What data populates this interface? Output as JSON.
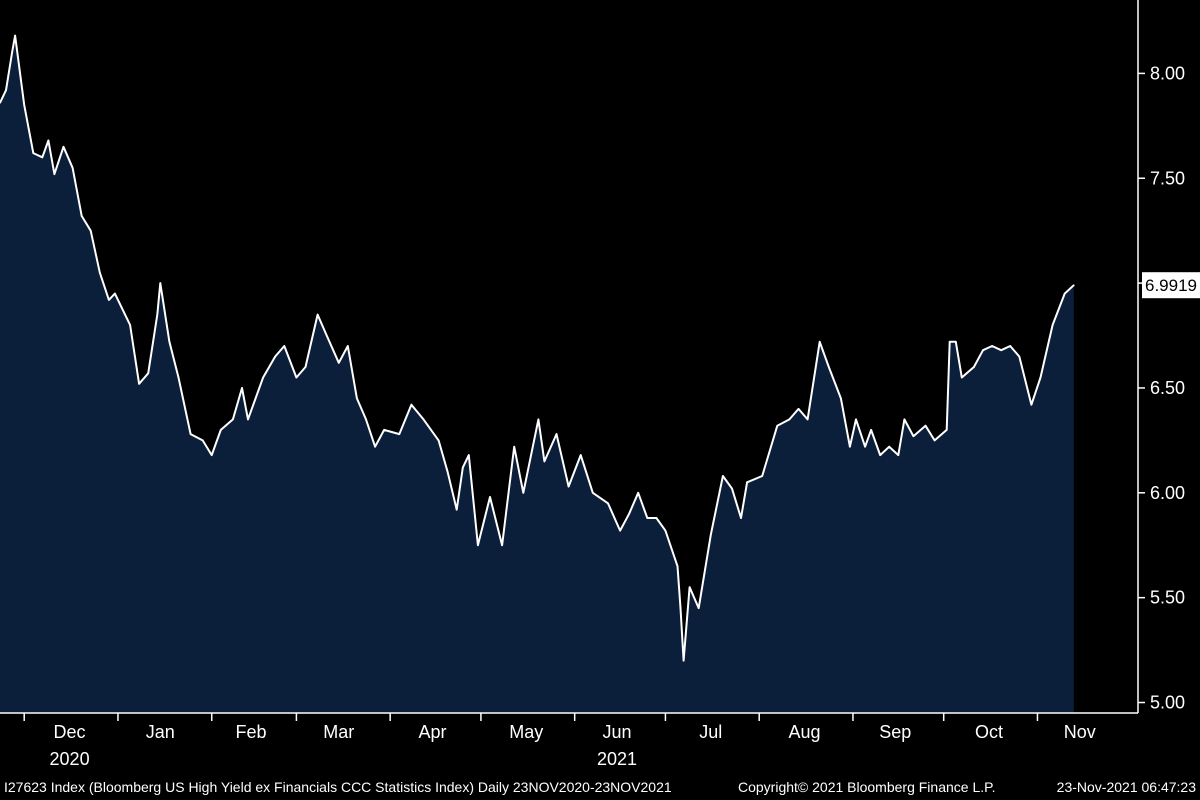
{
  "chart_data": {
    "type": "area",
    "series": [
      {
        "points": [
          [
            "2020-11-23",
            7.86
          ],
          [
            "2020-11-25",
            7.92
          ],
          [
            "2020-11-27",
            8.1
          ],
          [
            "2020-11-28",
            8.18
          ],
          [
            "2020-12-01",
            7.85
          ],
          [
            "2020-12-04",
            7.62
          ],
          [
            "2020-12-07",
            7.6
          ],
          [
            "2020-12-09",
            7.68
          ],
          [
            "2020-12-11",
            7.52
          ],
          [
            "2020-12-14",
            7.65
          ],
          [
            "2020-12-17",
            7.55
          ],
          [
            "2020-12-20",
            7.32
          ],
          [
            "2020-12-23",
            7.25
          ],
          [
            "2020-12-26",
            7.05
          ],
          [
            "2020-12-29",
            6.92
          ],
          [
            "2020-12-31",
            6.95
          ],
          [
            "2021-01-05",
            6.8
          ],
          [
            "2021-01-08",
            6.52
          ],
          [
            "2021-01-11",
            6.57
          ],
          [
            "2021-01-14",
            6.85
          ],
          [
            "2021-01-15",
            7.0
          ],
          [
            "2021-01-18",
            6.72
          ],
          [
            "2021-01-21",
            6.55
          ],
          [
            "2021-01-25",
            6.28
          ],
          [
            "2021-01-29",
            6.25
          ],
          [
            "2021-02-01",
            6.18
          ],
          [
            "2021-02-04",
            6.3
          ],
          [
            "2021-02-08",
            6.35
          ],
          [
            "2021-02-11",
            6.5
          ],
          [
            "2021-02-13",
            6.35
          ],
          [
            "2021-02-18",
            6.55
          ],
          [
            "2021-02-22",
            6.65
          ],
          [
            "2021-02-25",
            6.7
          ],
          [
            "2021-03-01",
            6.55
          ],
          [
            "2021-03-04",
            6.6
          ],
          [
            "2021-03-08",
            6.85
          ],
          [
            "2021-03-11",
            6.75
          ],
          [
            "2021-03-15",
            6.62
          ],
          [
            "2021-03-18",
            6.7
          ],
          [
            "2021-03-21",
            6.45
          ],
          [
            "2021-03-24",
            6.35
          ],
          [
            "2021-03-27",
            6.22
          ],
          [
            "2021-03-30",
            6.3
          ],
          [
            "2021-04-04",
            6.28
          ],
          [
            "2021-04-08",
            6.42
          ],
          [
            "2021-04-12",
            6.35
          ],
          [
            "2021-04-17",
            6.25
          ],
          [
            "2021-04-20",
            6.1
          ],
          [
            "2021-04-23",
            5.92
          ],
          [
            "2021-04-25",
            6.12
          ],
          [
            "2021-04-27",
            6.18
          ],
          [
            "2021-04-30",
            5.75
          ],
          [
            "2021-05-04",
            5.98
          ],
          [
            "2021-05-08",
            5.75
          ],
          [
            "2021-05-12",
            6.22
          ],
          [
            "2021-05-15",
            6.0
          ],
          [
            "2021-05-20",
            6.35
          ],
          [
            "2021-05-22",
            6.15
          ],
          [
            "2021-05-26",
            6.28
          ],
          [
            "2021-05-30",
            6.03
          ],
          [
            "2021-06-03",
            6.18
          ],
          [
            "2021-06-07",
            6.0
          ],
          [
            "2021-06-12",
            5.95
          ],
          [
            "2021-06-16",
            5.82
          ],
          [
            "2021-06-19",
            5.9
          ],
          [
            "2021-06-22",
            6.0
          ],
          [
            "2021-06-25",
            5.88
          ],
          [
            "2021-06-28",
            5.88
          ],
          [
            "2021-07-01",
            5.82
          ],
          [
            "2021-07-05",
            5.65
          ],
          [
            "2021-07-06",
            5.45
          ],
          [
            "2021-07-07",
            5.2
          ],
          [
            "2021-07-09",
            5.55
          ],
          [
            "2021-07-12",
            5.45
          ],
          [
            "2021-07-16",
            5.8
          ],
          [
            "2021-07-20",
            6.08
          ],
          [
            "2021-07-23",
            6.02
          ],
          [
            "2021-07-26",
            5.88
          ],
          [
            "2021-07-28",
            6.05
          ],
          [
            "2021-08-02",
            6.08
          ],
          [
            "2021-08-07",
            6.32
          ],
          [
            "2021-08-11",
            6.35
          ],
          [
            "2021-08-14",
            6.4
          ],
          [
            "2021-08-17",
            6.35
          ],
          [
            "2021-08-21",
            6.72
          ],
          [
            "2021-08-24",
            6.6
          ],
          [
            "2021-08-28",
            6.45
          ],
          [
            "2021-08-31",
            6.22
          ],
          [
            "2021-09-02",
            6.35
          ],
          [
            "2021-09-05",
            6.22
          ],
          [
            "2021-09-07",
            6.3
          ],
          [
            "2021-09-10",
            6.18
          ],
          [
            "2021-09-13",
            6.22
          ],
          [
            "2021-09-16",
            6.18
          ],
          [
            "2021-09-18",
            6.35
          ],
          [
            "2021-09-21",
            6.27
          ],
          [
            "2021-09-25",
            6.32
          ],
          [
            "2021-09-28",
            6.25
          ],
          [
            "2021-10-02",
            6.3
          ],
          [
            "2021-10-03",
            6.72
          ],
          [
            "2021-10-05",
            6.72
          ],
          [
            "2021-10-07",
            6.55
          ],
          [
            "2021-10-11",
            6.6
          ],
          [
            "2021-10-14",
            6.68
          ],
          [
            "2021-10-17",
            6.7
          ],
          [
            "2021-10-20",
            6.68
          ],
          [
            "2021-10-23",
            6.7
          ],
          [
            "2021-10-26",
            6.65
          ],
          [
            "2021-10-30",
            6.42
          ],
          [
            "2021-11-02",
            6.55
          ],
          [
            "2021-11-06",
            6.8
          ],
          [
            "2021-11-10",
            6.95
          ],
          [
            "2021-11-13",
            6.99
          ]
        ]
      }
    ],
    "x_range": [
      "2020-11-23",
      "2021-11-23"
    ],
    "ylim": [
      4.95,
      8.35
    ],
    "y_ticks": [
      "5.00",
      "5.50",
      "6.00",
      "6.50",
      "7.00",
      "7.50",
      "8.00"
    ],
    "x_month_labels": [
      {
        "date": "2020-12-16",
        "label": "Dec"
      },
      {
        "date": "2021-01-15",
        "label": "Jan"
      },
      {
        "date": "2021-02-14",
        "label": "Feb"
      },
      {
        "date": "2021-03-15",
        "label": "Mar"
      },
      {
        "date": "2021-04-15",
        "label": "Apr"
      },
      {
        "date": "2021-05-16",
        "label": "May"
      },
      {
        "date": "2021-06-15",
        "label": "Jun"
      },
      {
        "date": "2021-07-16",
        "label": "Jul"
      },
      {
        "date": "2021-08-16",
        "label": "Aug"
      },
      {
        "date": "2021-09-15",
        "label": "Sep"
      },
      {
        "date": "2021-10-16",
        "label": "Oct"
      },
      {
        "date": "2021-11-15",
        "label": "Nov"
      }
    ],
    "x_year_labels": [
      {
        "date": "2020-12-16",
        "label": "2020"
      },
      {
        "date": "2021-06-15",
        "label": "2021"
      }
    ],
    "x_ticks": [
      "2020-12-01",
      "2021-01-01",
      "2021-02-01",
      "2021-03-01",
      "2021-04-01",
      "2021-05-01",
      "2021-06-01",
      "2021-07-01",
      "2021-08-01",
      "2021-09-01",
      "2021-10-01",
      "2021-11-01"
    ],
    "last_value_label": "6.9919",
    "grid": false,
    "legend": "none",
    "colors": {
      "background": "#000000",
      "area_fill": "#0b1e3a",
      "line": "#ffffff",
      "axis": "#ffffff"
    }
  },
  "footer": {
    "index_description": "I27623 Index (Bloomberg US High Yield ex Financials CCC Statistics Index)  Daily 23NOV2020-23NOV2021",
    "copyright": "Copyright© 2021 Bloomberg Finance L.P.",
    "timestamp": "23-Nov-2021 06:47:23"
  }
}
